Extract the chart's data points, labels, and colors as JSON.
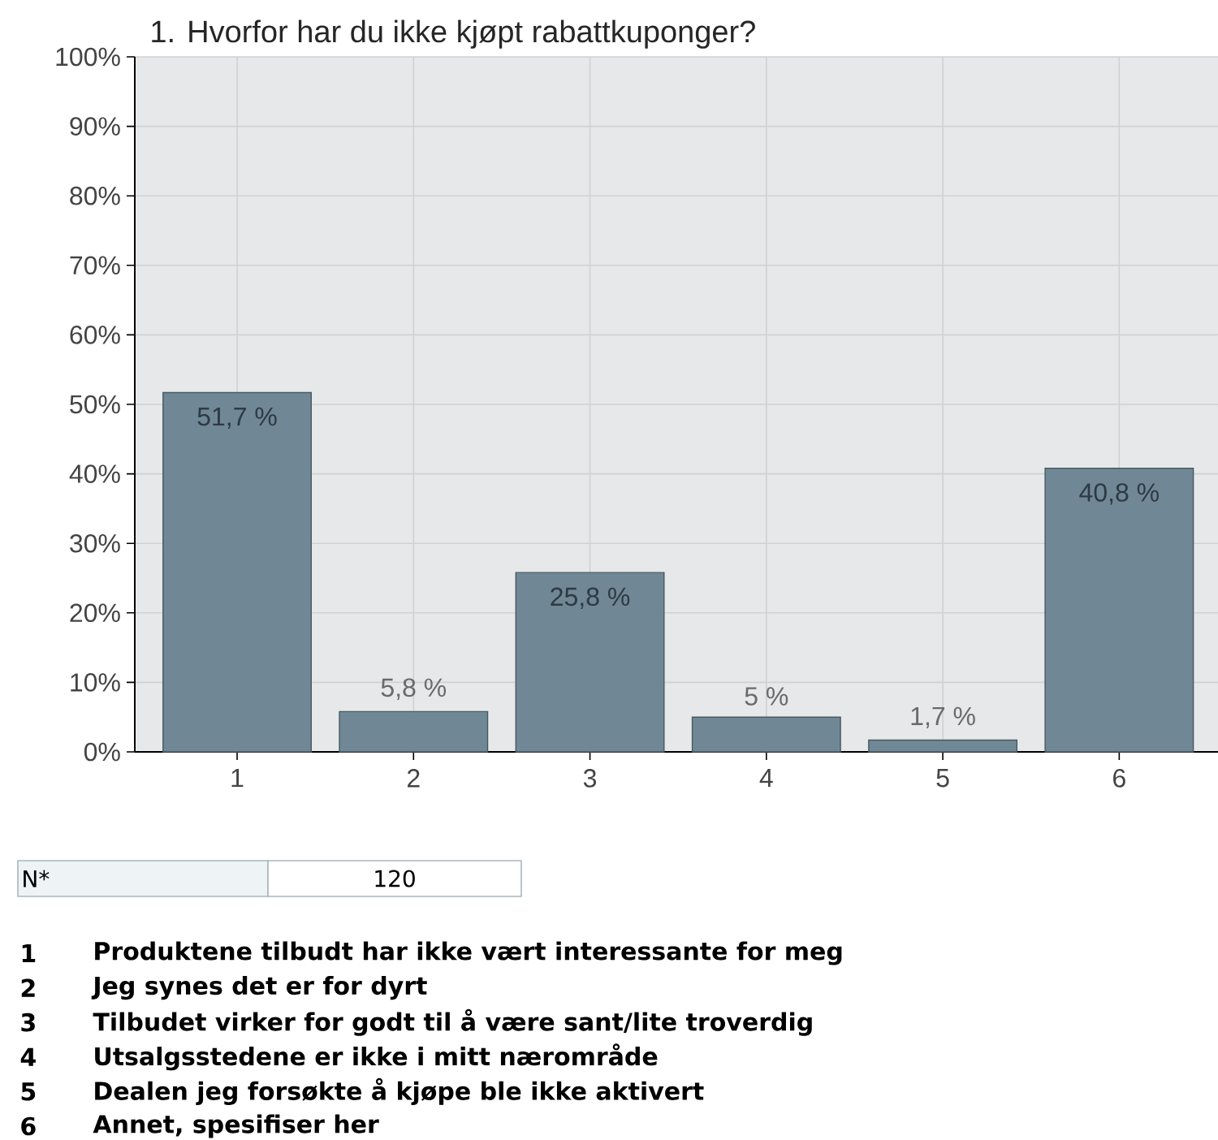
{
  "chart_data": {
    "type": "bar",
    "title": "1. Hvorfor har du ikke kjøpt rabattkuponger?",
    "categories": [
      "1",
      "2",
      "3",
      "4",
      "5",
      "6"
    ],
    "values": [
      51.7,
      5.8,
      25.8,
      5,
      1.7,
      40.8
    ],
    "value_labels": [
      "51,7 %",
      "5,8 %",
      "25,8 %",
      "5 %",
      "1,7 %",
      "40,8 %"
    ],
    "color": "#708896",
    "ylim": [
      0,
      100
    ],
    "yticks": [
      {
        "value": 0,
        "label": "0%"
      },
      {
        "value": 10,
        "label": "10%"
      },
      {
        "value": 20,
        "label": "20%"
      },
      {
        "value": 30,
        "label": "30%"
      },
      {
        "value": 40,
        "label": "40%"
      },
      {
        "value": 50,
        "label": "50%"
      },
      {
        "value": 60,
        "label": "60%"
      },
      {
        "value": 70,
        "label": "70%"
      },
      {
        "value": 80,
        "label": "80%"
      },
      {
        "value": 90,
        "label": "90%"
      },
      {
        "value": 100,
        "label": "100%"
      }
    ],
    "grid": true,
    "annotations": [
      "N*",
      "120",
      "1",
      "Produktene tilbudt har ikke vært interessante for meg",
      "2",
      "Jeg synes det er for dyrt",
      "3",
      "Tilbudet virker for godt til å være sant/lite troverdig",
      "4",
      "Utsalgsstedene er ikke i mitt nærområde",
      "5",
      "Dealen jeg forsøkte å kjøpe ble ikke aktivert",
      "6",
      "Annet, spesifiser her"
    ]
  }
}
